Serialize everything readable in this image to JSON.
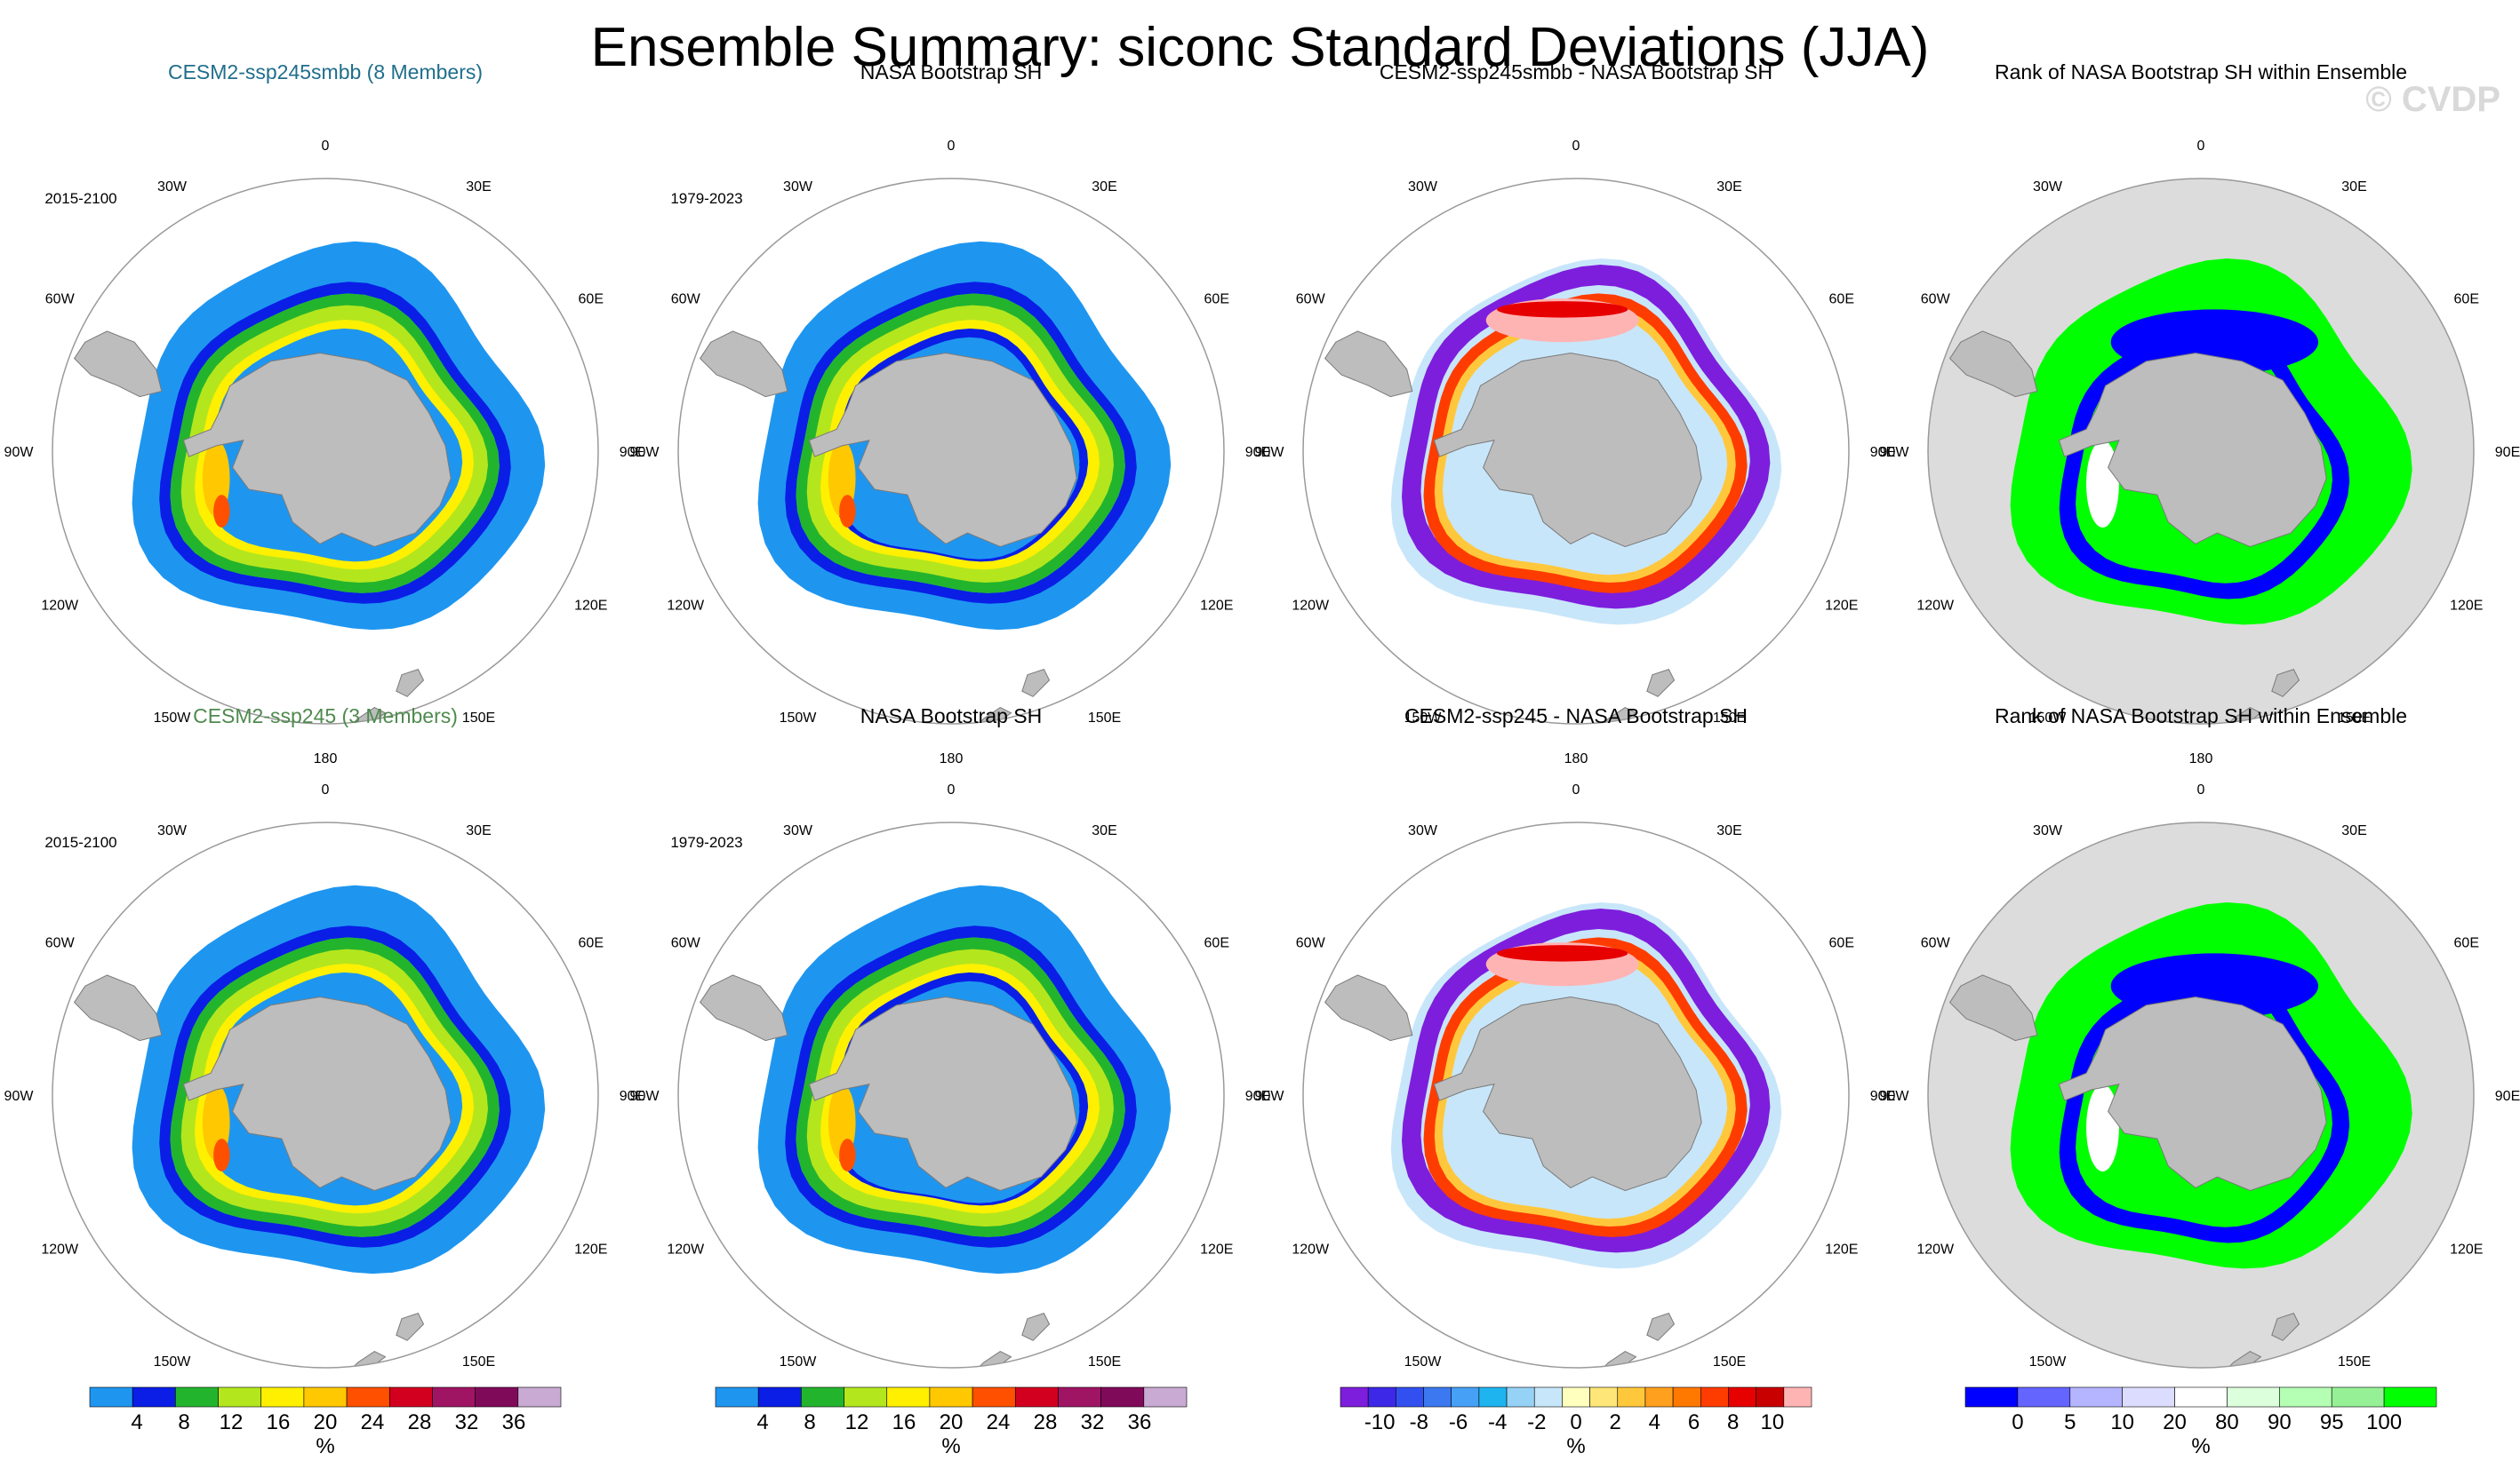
{
  "title": "Ensemble Summary: siconc Standard Deviations (JJA)",
  "watermark": "© CVDP",
  "colors": {
    "land": "#bdbdbd",
    "rank_background": "#dcdcdc",
    "circle": "#9a9a9a"
  },
  "lon_labels": [
    "0",
    "30E",
    "60E",
    "90E",
    "120E",
    "150E",
    "180",
    "150W",
    "120W",
    "90W",
    "60W",
    "30W"
  ],
  "chart_data": [
    {
      "type": "heatmap",
      "row": 0,
      "col": 0,
      "title": "CESM2-ssp245smbb (8 Members)",
      "title_color": "#1f6e8c",
      "period": "2015-2100",
      "palette": "std",
      "pattern": "model_a"
    },
    {
      "type": "heatmap",
      "row": 0,
      "col": 1,
      "title": "NASA Bootstrap SH",
      "title_color": "#000000",
      "period": "1979-2023",
      "palette": "std",
      "pattern": "obs"
    },
    {
      "type": "heatmap",
      "row": 0,
      "col": 2,
      "title": "CESM2-ssp245smbb - NASA Bootstrap SH",
      "title_color": "#000000",
      "period": "",
      "palette": "diff",
      "pattern": "diff_a"
    },
    {
      "type": "heatmap",
      "row": 0,
      "col": 3,
      "title": "Rank of NASA Bootstrap SH within Ensemble",
      "title_color": "#000000",
      "period": "",
      "palette": "rank",
      "pattern": "rank_a"
    },
    {
      "type": "heatmap",
      "row": 1,
      "col": 0,
      "title": "CESM2-ssp245 (3 Members)",
      "title_color": "#4f8a4f",
      "period": "2015-2100",
      "palette": "std",
      "pattern": "model_b"
    },
    {
      "type": "heatmap",
      "row": 1,
      "col": 1,
      "title": "NASA Bootstrap SH",
      "title_color": "#000000",
      "period": "1979-2023",
      "palette": "std",
      "pattern": "obs"
    },
    {
      "type": "heatmap",
      "row": 1,
      "col": 2,
      "title": "CESM2-ssp245 - NASA Bootstrap SH",
      "title_color": "#000000",
      "period": "",
      "palette": "diff",
      "pattern": "diff_b"
    },
    {
      "type": "heatmap",
      "row": 1,
      "col": 3,
      "title": "Rank of NASA Bootstrap SH within Ensemble",
      "title_color": "#000000",
      "period": "",
      "palette": "rank",
      "pattern": "rank_b"
    }
  ],
  "colorbars": [
    {
      "col": 0,
      "unit": "%",
      "colors": [
        "#1e96f0",
        "#0a1ee6",
        "#23b42d",
        "#b4e61e",
        "#fff000",
        "#ffc800",
        "#ff5000",
        "#d2001e",
        "#a01464",
        "#800a5a",
        "#c8aad2"
      ],
      "labels": [
        "4",
        "8",
        "12",
        "16",
        "20",
        "24",
        "28",
        "32",
        "36"
      ]
    },
    {
      "col": 1,
      "unit": "%",
      "colors": [
        "#1e96f0",
        "#0a1ee6",
        "#23b42d",
        "#b4e61e",
        "#fff000",
        "#ffc800",
        "#ff5000",
        "#d2001e",
        "#a01464",
        "#800a5a",
        "#c8aad2"
      ],
      "labels": [
        "4",
        "8",
        "12",
        "16",
        "20",
        "24",
        "28",
        "32",
        "36"
      ]
    },
    {
      "col": 2,
      "unit": "%",
      "colors": [
        "#7d1edc",
        "#3c28e6",
        "#3250f0",
        "#3c78f0",
        "#46a0f5",
        "#1eb4f0",
        "#96d2f5",
        "#c8e6fa",
        "#ffffbe",
        "#ffe678",
        "#ffc83c",
        "#ffa01e",
        "#ff7800",
        "#ff3c00",
        "#e60000",
        "#c80000",
        "#ffb4b4"
      ],
      "labels": [
        "-10",
        "-8",
        "-6",
        "-4",
        "-2",
        "0",
        "2",
        "4",
        "6",
        "8",
        "10"
      ]
    },
    {
      "col": 3,
      "unit": "%",
      "colors": [
        "#0000ff",
        "#6464ff",
        "#b4b4ff",
        "#dcdcff",
        "#ffffff",
        "#dcffdc",
        "#b4ffb4",
        "#96f096",
        "#00ff00"
      ],
      "labels": [
        "0",
        "5",
        "10",
        "20",
        "80",
        "90",
        "95",
        "100"
      ]
    }
  ]
}
